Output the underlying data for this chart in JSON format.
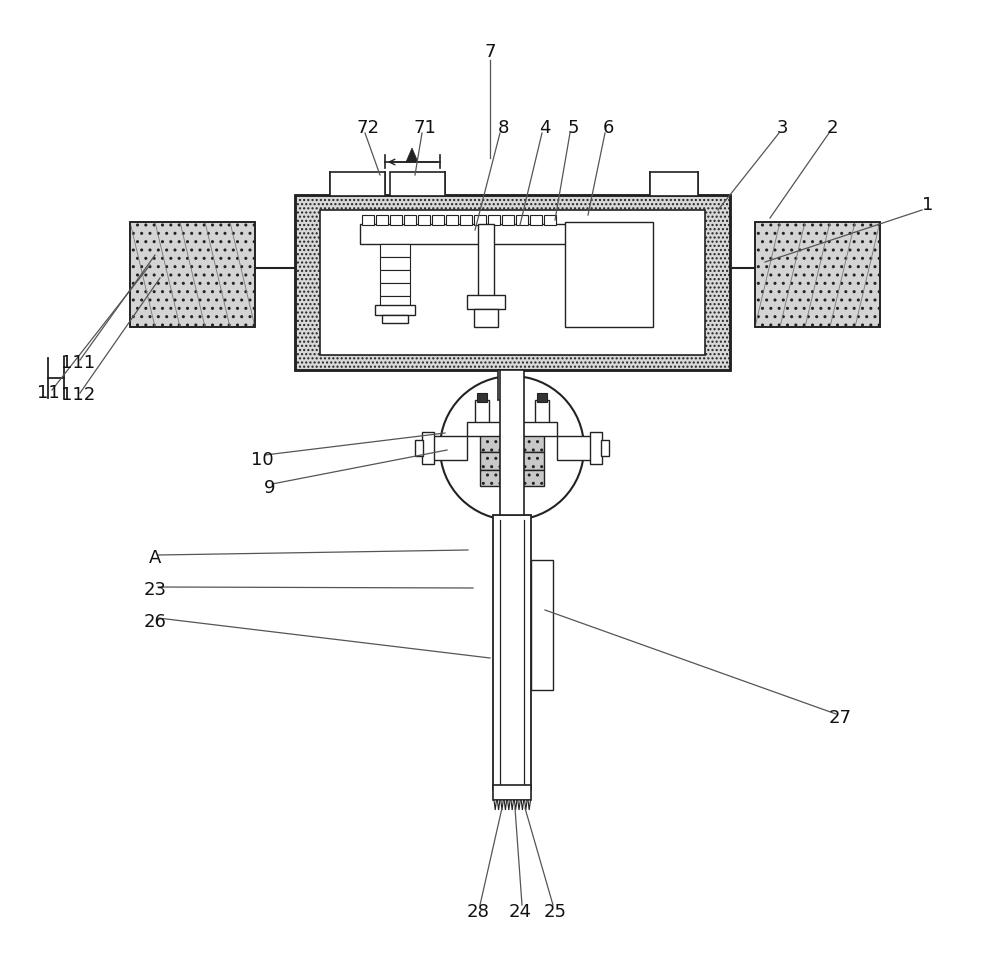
{
  "bg_color": "#ffffff",
  "lc": "#222222",
  "figsize": [
    10.0,
    9.65
  ],
  "dpi": 100,
  "labels": [
    [
      "7",
      490,
      52
    ],
    [
      "72",
      368,
      128
    ],
    [
      "71",
      425,
      128
    ],
    [
      "8",
      503,
      128
    ],
    [
      "4",
      545,
      128
    ],
    [
      "5",
      573,
      128
    ],
    [
      "6",
      608,
      128
    ],
    [
      "3",
      782,
      128
    ],
    [
      "2",
      832,
      128
    ],
    [
      "1",
      928,
      205
    ],
    [
      "11",
      48,
      393
    ],
    [
      "111",
      78,
      363
    ],
    [
      "112",
      78,
      395
    ],
    [
      "10",
      262,
      460
    ],
    [
      "9",
      270,
      488
    ],
    [
      "A",
      155,
      558
    ],
    [
      "23",
      155,
      590
    ],
    [
      "26",
      155,
      622
    ],
    [
      "27",
      840,
      718
    ],
    [
      "28",
      478,
      912
    ],
    [
      "24",
      520,
      912
    ],
    [
      "25",
      555,
      912
    ]
  ],
  "leader_lines": [
    [
      490,
      60,
      490,
      158
    ],
    [
      365,
      133,
      380,
      175
    ],
    [
      422,
      133,
      415,
      175
    ],
    [
      500,
      133,
      475,
      230
    ],
    [
      542,
      133,
      520,
      225
    ],
    [
      570,
      133,
      555,
      220
    ],
    [
      605,
      133,
      588,
      215
    ],
    [
      779,
      133,
      718,
      210
    ],
    [
      829,
      133,
      770,
      218
    ],
    [
      922,
      210,
      765,
      262
    ],
    [
      52,
      390,
      150,
      265
    ],
    [
      80,
      360,
      155,
      255
    ],
    [
      80,
      393,
      160,
      278
    ],
    [
      265,
      455,
      445,
      433
    ],
    [
      272,
      484,
      447,
      450
    ],
    [
      158,
      555,
      468,
      550
    ],
    [
      158,
      587,
      473,
      588
    ],
    [
      158,
      618,
      490,
      658
    ],
    [
      836,
      714,
      545,
      610
    ],
    [
      480,
      905,
      502,
      808
    ],
    [
      522,
      905,
      515,
      808
    ],
    [
      553,
      905,
      525,
      808
    ]
  ]
}
